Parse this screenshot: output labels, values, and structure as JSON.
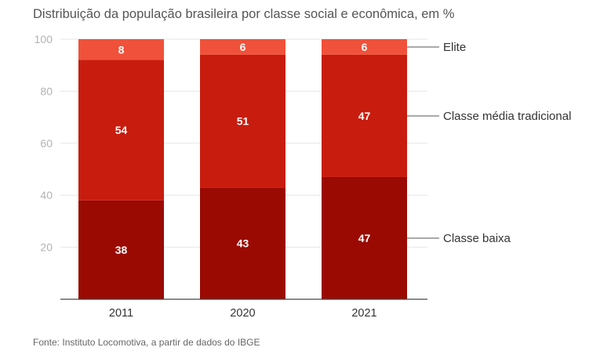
{
  "title": "Distribuição da população brasileira por classe social e econômica, em %",
  "source": "Fonte: Instituto Locomotiva, a partir de dados do IBGE",
  "chart_data": {
    "type": "bar",
    "stacked": true,
    "categories": [
      "2011",
      "2020",
      "2021"
    ],
    "series": [
      {
        "name": "Classe baixa",
        "values": [
          38,
          43,
          47
        ],
        "color": "#9a0a02"
      },
      {
        "name": "Classe média tradicional",
        "values": [
          54,
          51,
          47
        ],
        "color": "#c81c0e"
      },
      {
        "name": "Elite",
        "values": [
          8,
          6,
          6
        ],
        "color": "#f0513a"
      }
    ],
    "ylim": [
      0,
      100
    ],
    "yticks": [
      20,
      40,
      60,
      80,
      100
    ],
    "grid": true,
    "legend": "right, labels at each series in the last bar"
  }
}
